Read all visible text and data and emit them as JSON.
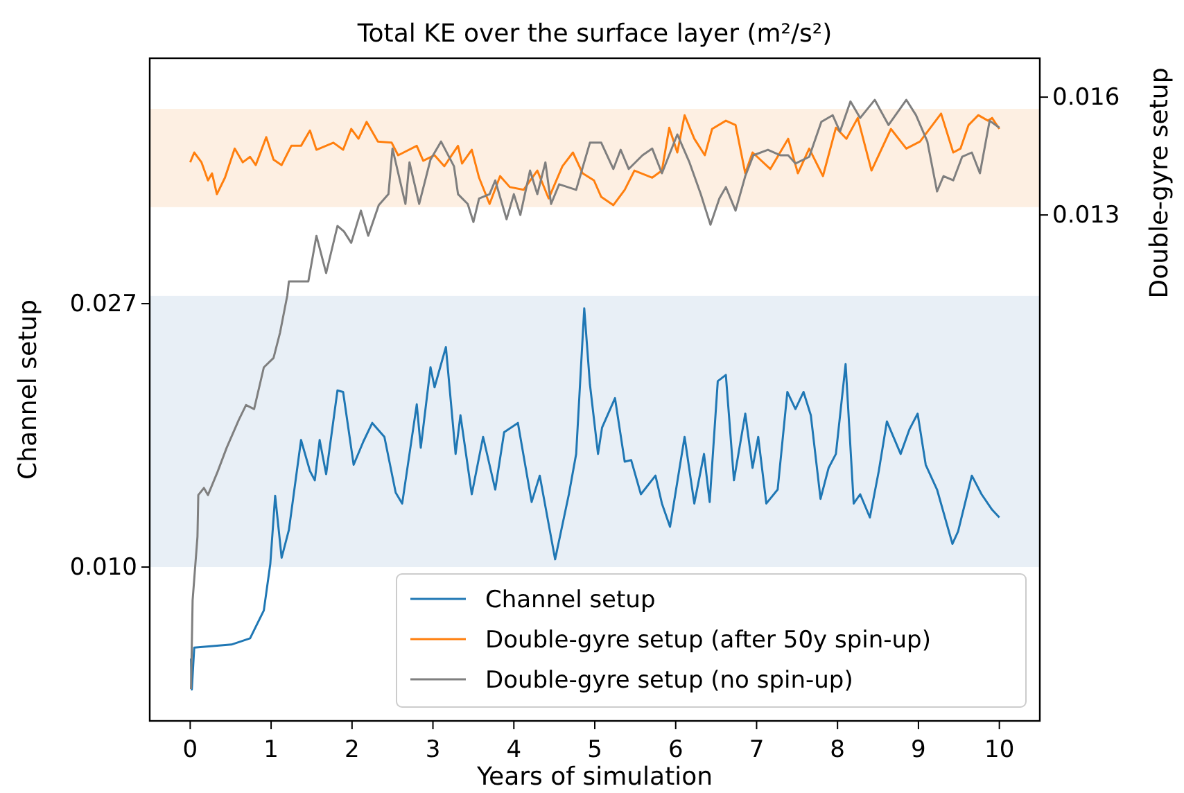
{
  "chart_data": {
    "type": "line",
    "title": "Total KE over the surface layer (m²/s²)",
    "xlabel": "Years of simulation",
    "ylabel": "Channel setup",
    "y2label": "Double-gyre setup",
    "xlim": [
      -0.5,
      10.5
    ],
    "xticks": [
      0,
      1,
      2,
      3,
      4,
      5,
      6,
      7,
      8,
      9,
      10
    ],
    "ylim": [
      7e-05,
      0.04284
    ],
    "yticks": [
      {
        "value": 0.01,
        "label": "0.010"
      },
      0.027
    ],
    "y2lim": [
      0.00012,
      0.01699
    ],
    "y2ticks": [
      0.013,
      0.016
    ],
    "legend": "bottom right",
    "bands": [
      {
        "axis": "y",
        "from": 0.01,
        "to": 0.0275,
        "color": "#e8eff6"
      },
      {
        "axis": "y2",
        "from": 0.0132,
        "to": 0.0157,
        "color": "#fdefe2"
      }
    ],
    "series": [
      {
        "name": "Channel setup",
        "color": "#1f77b4",
        "x": [
          0.01,
          0.02,
          0.05,
          0.51,
          0.74,
          0.91,
          0.99,
          1.05,
          1.13,
          1.22,
          1.37,
          1.48,
          1.54,
          1.6,
          1.68,
          1.82,
          1.89,
          2.02,
          2.14,
          2.25,
          2.4,
          2.54,
          2.62,
          2.8,
          2.85,
          2.97,
          3.02,
          3.16,
          3.28,
          3.34,
          3.48,
          3.62,
          3.77,
          3.88,
          4.05,
          4.22,
          4.32,
          4.51,
          4.68,
          4.77,
          4.87,
          4.94,
          5.04,
          5.09,
          5.25,
          5.37,
          5.45,
          5.57,
          5.75,
          5.83,
          5.93,
          6.11,
          6.23,
          6.35,
          6.42,
          6.52,
          6.62,
          6.72,
          6.86,
          6.95,
          7.02,
          7.12,
          7.26,
          7.38,
          7.48,
          7.58,
          7.67,
          7.79,
          7.89,
          7.98,
          8.1,
          8.2,
          8.28,
          8.4,
          8.51,
          8.61,
          8.78,
          8.89,
          8.99,
          9.09,
          9.23,
          9.42,
          9.49,
          9.66,
          9.78,
          9.91,
          10.0
        ],
        "values": [
          0.0041,
          0.0021,
          0.0048,
          0.005,
          0.0054,
          0.0072,
          0.0102,
          0.0146,
          0.0106,
          0.0124,
          0.0182,
          0.0162,
          0.0156,
          0.0182,
          0.016,
          0.0214,
          0.0213,
          0.0166,
          0.0181,
          0.0193,
          0.0184,
          0.0148,
          0.0141,
          0.0205,
          0.0177,
          0.0229,
          0.0216,
          0.0242,
          0.0173,
          0.0198,
          0.0147,
          0.0184,
          0.015,
          0.0187,
          0.0193,
          0.0142,
          0.0159,
          0.0105,
          0.0147,
          0.0173,
          0.0267,
          0.0218,
          0.0173,
          0.019,
          0.0209,
          0.0168,
          0.0169,
          0.0147,
          0.0159,
          0.0141,
          0.0126,
          0.0184,
          0.0141,
          0.0173,
          0.0142,
          0.022,
          0.0224,
          0.0156,
          0.0199,
          0.0164,
          0.0184,
          0.0141,
          0.015,
          0.0213,
          0.0202,
          0.0213,
          0.0198,
          0.0144,
          0.0164,
          0.0173,
          0.0231,
          0.0141,
          0.0147,
          0.0132,
          0.0162,
          0.0194,
          0.0173,
          0.0189,
          0.0199,
          0.0166,
          0.015,
          0.0115,
          0.0123,
          0.0159,
          0.0147,
          0.0137,
          0.0132
        ]
      },
      {
        "name": "Double-gyre setup (after 50y spin-up)",
        "color": "#ff7f0e",
        "axis": "y2",
        "x": [
          0,
          0.05,
          0.14,
          0.22,
          0.27,
          0.33,
          0.43,
          0.55,
          0.65,
          0.74,
          0.81,
          0.94,
          1.03,
          1.13,
          1.25,
          1.37,
          1.48,
          1.56,
          1.77,
          1.89,
          1.99,
          2.08,
          2.18,
          2.32,
          2.49,
          2.57,
          2.8,
          2.88,
          3.02,
          3.14,
          3.31,
          3.36,
          3.48,
          3.57,
          3.7,
          3.83,
          3.95,
          4.12,
          4.29,
          4.43,
          4.6,
          4.73,
          4.85,
          4.99,
          5.08,
          5.23,
          5.37,
          5.49,
          5.71,
          5.83,
          5.92,
          6.02,
          6.11,
          6.23,
          6.36,
          6.45,
          6.62,
          6.74,
          6.86,
          6.95,
          7.17,
          7.39,
          7.51,
          7.65,
          7.82,
          7.98,
          8.11,
          8.25,
          8.42,
          8.66,
          8.85,
          9.02,
          9.28,
          9.43,
          9.52,
          9.62,
          9.74,
          9.86,
          9.91,
          10.0
        ],
        "values": [
          0.01434,
          0.01459,
          0.01434,
          0.01388,
          0.01406,
          0.01353,
          0.01395,
          0.01469,
          0.01434,
          0.01448,
          0.01427,
          0.01498,
          0.01441,
          0.01427,
          0.01476,
          0.01476,
          0.01515,
          0.01466,
          0.01484,
          0.01466,
          0.01519,
          0.01494,
          0.01537,
          0.01487,
          0.01484,
          0.01452,
          0.01476,
          0.01438,
          0.01452,
          0.01424,
          0.01476,
          0.01431,
          0.01466,
          0.01395,
          0.01328,
          0.01399,
          0.01371,
          0.01364,
          0.01413,
          0.01342,
          0.01424,
          0.01459,
          0.01406,
          0.01388,
          0.01346,
          0.01325,
          0.01364,
          0.01413,
          0.01395,
          0.01413,
          0.01522,
          0.01459,
          0.01554,
          0.01494,
          0.01452,
          0.01519,
          0.0154,
          0.01529,
          0.01406,
          0.01459,
          0.01417,
          0.01494,
          0.01406,
          0.01469,
          0.01399,
          0.01522,
          0.01494,
          0.01547,
          0.01413,
          0.01519,
          0.01469,
          0.01487,
          0.01558,
          0.01459,
          0.01469,
          0.01529,
          0.01554,
          0.0154,
          0.01547,
          0.01519
        ]
      },
      {
        "name": "Double-gyre setup (no spin-up)",
        "color": "#7f7f7f",
        "axis": "y2",
        "x": [
          0.01,
          0.03,
          0.09,
          0.1,
          0.17,
          0.22,
          0.34,
          0.45,
          0.6,
          0.69,
          0.79,
          0.91,
          1.03,
          1.11,
          1.2,
          1.22,
          1.3,
          1.46,
          1.56,
          1.68,
          1.82,
          1.9,
          1.99,
          2.11,
          2.2,
          2.33,
          2.45,
          2.5,
          2.66,
          2.71,
          2.83,
          2.97,
          3.1,
          3.26,
          3.31,
          3.43,
          3.5,
          3.57,
          3.7,
          3.77,
          3.91,
          4.0,
          4.08,
          4.2,
          4.29,
          4.39,
          4.46,
          4.56,
          4.77,
          4.94,
          4.97,
          5.08,
          5.23,
          5.32,
          5.42,
          5.59,
          5.71,
          5.83,
          6.02,
          6.17,
          6.31,
          6.43,
          6.54,
          6.62,
          6.74,
          6.86,
          6.96,
          7.14,
          7.29,
          7.39,
          7.48,
          7.65,
          7.8,
          7.94,
          8.03,
          8.16,
          8.28,
          8.46,
          8.63,
          8.85,
          8.97,
          9.11,
          9.23,
          9.31,
          9.43,
          9.54,
          9.66,
          9.76,
          9.88,
          10.0
        ],
        "values": [
          0.00093,
          0.00319,
          0.00481,
          0.00587,
          0.00605,
          0.00587,
          0.00647,
          0.00707,
          0.00778,
          0.00816,
          0.00806,
          0.00912,
          0.00936,
          0.01,
          0.01095,
          0.01131,
          0.01131,
          0.01131,
          0.01247,
          0.01152,
          0.01272,
          0.01258,
          0.01229,
          0.01311,
          0.01247,
          0.01325,
          0.01353,
          0.01469,
          0.01328,
          0.01434,
          0.01328,
          0.01441,
          0.01487,
          0.01424,
          0.01353,
          0.01328,
          0.01282,
          0.01342,
          0.01353,
          0.01388,
          0.01289,
          0.01353,
          0.013,
          0.01413,
          0.01353,
          0.01434,
          0.01328,
          0.01378,
          0.01364,
          0.01484,
          0.01484,
          0.01484,
          0.01417,
          0.01466,
          0.01417,
          0.01452,
          0.01469,
          0.01406,
          0.01505,
          0.01434,
          0.01353,
          0.01275,
          0.01342,
          0.01371,
          0.01311,
          0.01399,
          0.01452,
          0.01466,
          0.01452,
          0.01452,
          0.01431,
          0.01448,
          0.01537,
          0.01554,
          0.01512,
          0.01589,
          0.01547,
          0.01593,
          0.01529,
          0.01593,
          0.01554,
          0.01487,
          0.0136,
          0.01399,
          0.01388,
          0.01448,
          0.01459,
          0.01406,
          0.0154,
          0.01522
        ]
      }
    ]
  }
}
